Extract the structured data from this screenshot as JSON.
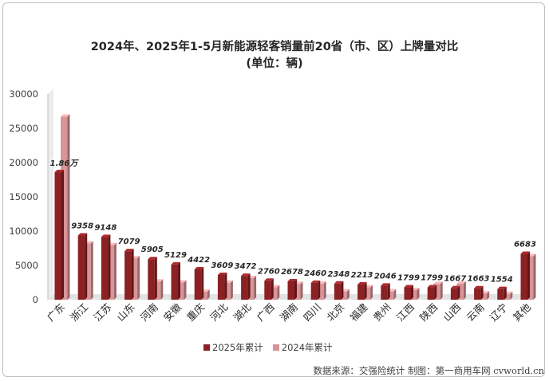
{
  "title": "2024年、2025年1-5月新能源轻客销量前20省（市、区）上牌量对比",
  "subtitle": "(单位：辆)",
  "source": "数据来源：交强险统计 制图：第一商用车网 cvworld.cn",
  "colors": {
    "s2025": "#8b2123",
    "s2024": "#d99497",
    "floor": "#e3e3e3"
  },
  "chart_data": {
    "type": "bar",
    "title": "2024年、2025年1-5月新能源轻客销量前20省（市、区）上牌量对比",
    "subtitle": "(单位：辆)",
    "categories": [
      "广东",
      "浙江",
      "江苏",
      "山东",
      "河南",
      "安徽",
      "重庆",
      "河北",
      "湖北",
      "广西",
      "湖南",
      "四川",
      "北京",
      "福建",
      "贵州",
      "江西",
      "陕西",
      "山西",
      "云南",
      "辽宁",
      "其他"
    ],
    "series": [
      {
        "name": "2025年累计",
        "values": [
          18600,
          9358,
          9148,
          7079,
          5905,
          5129,
          4422,
          3609,
          3472,
          2760,
          2678,
          2460,
          2348,
          2213,
          2046,
          1799,
          1799,
          1667,
          1663,
          1554,
          6683
        ]
      },
      {
        "name": "2024年累计",
        "values": [
          26700,
          8200,
          7950,
          6050,
          2650,
          2500,
          1150,
          2450,
          3150,
          1800,
          2300,
          2350,
          1200,
          1800,
          1200,
          1400,
          2300,
          2350,
          900,
          850,
          6350
        ]
      }
    ],
    "data_labels": [
      "1.86万",
      "9358",
      "9148",
      "7079",
      "5905",
      "5129",
      "4422",
      "3609",
      "3472",
      "2760",
      "2678",
      "2460",
      "2348",
      "2213",
      "2046",
      "1799",
      "1799",
      "1667",
      "1663",
      "1554",
      "6683"
    ],
    "ylim": [
      0,
      30000
    ],
    "yticks": [
      "0",
      "5000",
      "10000",
      "15000",
      "20000",
      "25000",
      "30000"
    ],
    "legend_position": "bottom",
    "grid": false
  }
}
